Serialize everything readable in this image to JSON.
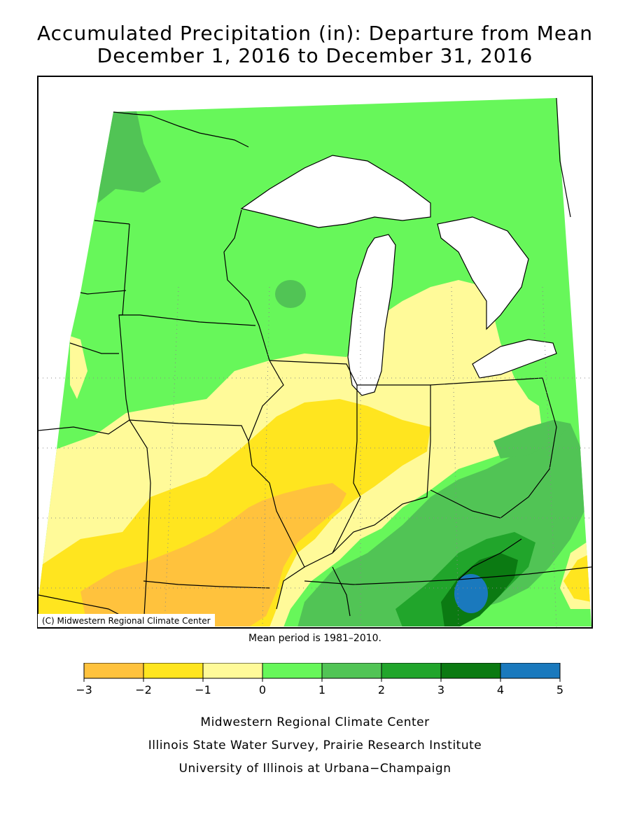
{
  "title": {
    "line1": "Accumulated Precipitation (in): Departure from Mean",
    "line2": "December 1, 2016 to December 31, 2016"
  },
  "map": {
    "copyright": "(C) Midwestern Regional Climate Center",
    "mean_period": "Mean period is 1981–2010.",
    "colors": {
      "neg3_neg2": "#ffc23d",
      "neg2_neg1": "#ffe51f",
      "neg1_0": "#fffa99",
      "0_1": "#67f75a",
      "1_2": "#51c455",
      "2_3": "#21a52b",
      "3_4": "#0b7a12",
      "4_5": "#1a79bd",
      "lakes": "#ffffff",
      "borders": "#000000"
    }
  },
  "legend": {
    "labels": [
      "−3",
      "−2",
      "−1",
      "0",
      "1",
      "2",
      "3",
      "4",
      "5"
    ],
    "colors": [
      "#ffc23d",
      "#ffe51f",
      "#fffa99",
      "#67f75a",
      "#51c455",
      "#21a52b",
      "#0b7a12",
      "#1a79bd"
    ]
  },
  "credits": {
    "line1": "Midwestern Regional Climate Center",
    "line2": "Illinois State Water Survey, Prairie Research Institute",
    "line3": "University of Illinois at Urbana−Champaign"
  }
}
